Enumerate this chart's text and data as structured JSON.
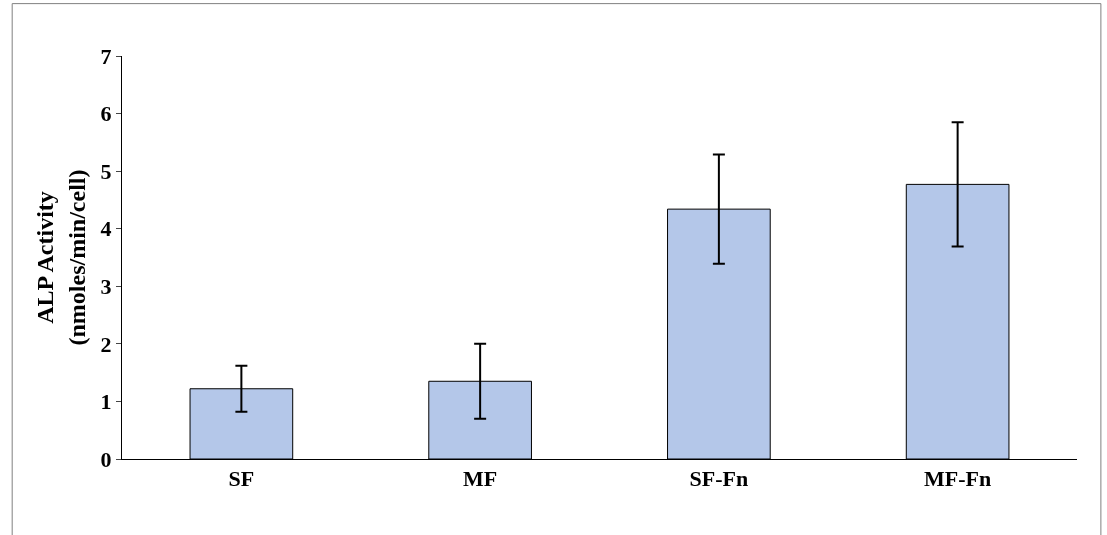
{
  "chart_data": {
    "type": "bar",
    "ylabel": "ALP Activity\n(nmoles/min/cell)",
    "categories": [
      "SF",
      "MF",
      "SF-Fn",
      "MF-Fn"
    ],
    "values": [
      1.22,
      1.35,
      4.34,
      4.77
    ],
    "errors": [
      0.4,
      0.65,
      0.95,
      1.08
    ],
    "color": "#b4c7e9",
    "ylim": [
      0,
      7
    ],
    "yticks": [
      0,
      1,
      2,
      3,
      4,
      5,
      6,
      7
    ]
  }
}
